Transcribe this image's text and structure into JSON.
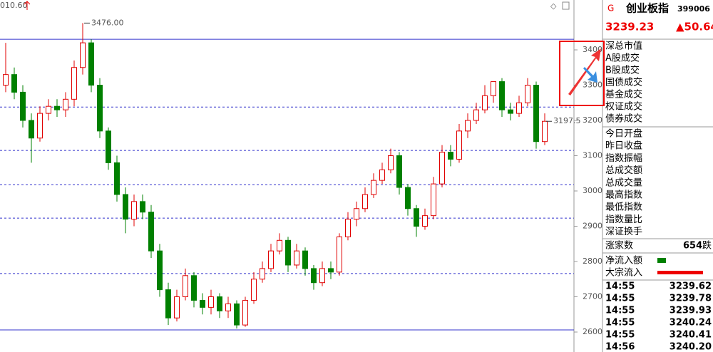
{
  "chart_data": {
    "type": "candlestick",
    "corner_label": "010.60",
    "open": [
      3300,
      3330,
      3280,
      3200,
      3150,
      3220,
      3240,
      3230,
      3260,
      3350,
      3420,
      3300,
      3170,
      3080,
      2990,
      2920,
      2970,
      2940,
      2830,
      2720,
      2640,
      2700,
      2760,
      2690,
      2670,
      2700,
      2660,
      2680,
      2620,
      2690,
      2750,
      2780,
      2830,
      2860,
      2790,
      2830,
      2780,
      2740,
      2780,
      2770,
      2870,
      2920,
      2950,
      2990,
      3030,
      3060,
      3100,
      3010,
      2950,
      2900,
      2930,
      3020,
      3110,
      3090,
      3170,
      3200,
      3230,
      3270,
      3310,
      3230,
      3220,
      3250,
      3300,
      3140
    ],
    "high": [
      3420,
      3350,
      3300,
      3220,
      3240,
      3260,
      3260,
      3280,
      3370,
      3476,
      3430,
      3320,
      3180,
      3100,
      3010,
      2990,
      2990,
      2960,
      2850,
      2740,
      2720,
      2780,
      2770,
      2710,
      2720,
      2710,
      2700,
      2690,
      2700,
      2770,
      2800,
      2850,
      2880,
      2870,
      2850,
      2840,
      2790,
      2800,
      2800,
      2880,
      2940,
      2970,
      3010,
      3050,
      3080,
      3120,
      3110,
      3020,
      2960,
      2950,
      3040,
      3130,
      3130,
      3190,
      3220,
      3250,
      3300,
      3310,
      3320,
      3250,
      3270,
      3320,
      3310,
      3220
    ],
    "low": [
      3280,
      3260,
      3180,
      3080,
      3140,
      3200,
      3210,
      3210,
      3240,
      3330,
      3280,
      3150,
      3060,
      2970,
      2880,
      2900,
      2920,
      2810,
      2700,
      2620,
      2630,
      2690,
      2670,
      2650,
      2650,
      2640,
      2640,
      2610,
      2615,
      2680,
      2740,
      2770,
      2820,
      2770,
      2780,
      2760,
      2720,
      2730,
      2750,
      2760,
      2860,
      2900,
      2940,
      2980,
      3020,
      3050,
      2990,
      2930,
      2870,
      2890,
      2920,
      3010,
      3070,
      3080,
      3150,
      3190,
      3220,
      3250,
      3210,
      3200,
      3210,
      3240,
      3120,
      3130
    ],
    "close": [
      3330,
      3280,
      3200,
      3150,
      3220,
      3240,
      3230,
      3260,
      3350,
      3420,
      3300,
      3170,
      3080,
      2990,
      2920,
      2970,
      2940,
      2830,
      2720,
      2640,
      2700,
      2760,
      2690,
      2670,
      2700,
      2660,
      2680,
      2620,
      2690,
      2750,
      2780,
      2830,
      2860,
      2790,
      2830,
      2780,
      2740,
      2780,
      2770,
      2870,
      2920,
      2950,
      2990,
      3030,
      3060,
      3100,
      3010,
      2950,
      2900,
      2930,
      3020,
      3110,
      3090,
      3170,
      3200,
      3230,
      3270,
      3310,
      3230,
      3220,
      3250,
      3300,
      3140,
      3197.5
    ],
    "up_color": "#e00000",
    "down_color": "#008000",
    "ylim": [
      2580,
      3500
    ],
    "yticks": [
      2600,
      2700,
      2800,
      2900,
      3000,
      3100,
      3200,
      3300,
      3400
    ],
    "solid_levels": [
      3430,
      2606
    ],
    "dashed_levels": [
      3238,
      3115,
      3018,
      2923,
      2766
    ],
    "annotations": [
      {
        "text": "3476.00",
        "value": 3476,
        "index": 9
      },
      {
        "text": "3197.5",
        "value": 3197.5,
        "index": 63
      }
    ]
  },
  "panel": {
    "marker": "G",
    "name": "创业板指",
    "code": "399006",
    "price": "3239.23",
    "change": "▲50.64",
    "fields_a": [
      "深总市值",
      "A股成交",
      "B股成交",
      "国债成交",
      "基金成交",
      "权证成交",
      "债券成交"
    ],
    "fields_b": [
      "今日开盘",
      "昨日收盘",
      "指数振幅",
      "总成交额",
      "总成交量",
      "最高指数",
      "最低指数",
      "指数量比",
      "深证换手"
    ],
    "rise_label": "涨家数",
    "rise_count": "654",
    "fall_label": "跌",
    "flows": [
      "净流入额",
      "大宗流入"
    ],
    "ticks": [
      [
        "14:55",
        "3239.62"
      ],
      [
        "14:55",
        "3239.78"
      ],
      [
        "14:55",
        "3239.93"
      ],
      [
        "14:55",
        "3240.24"
      ],
      [
        "14:55",
        "3240.41"
      ],
      [
        "14:56",
        "3240.20"
      ]
    ]
  }
}
